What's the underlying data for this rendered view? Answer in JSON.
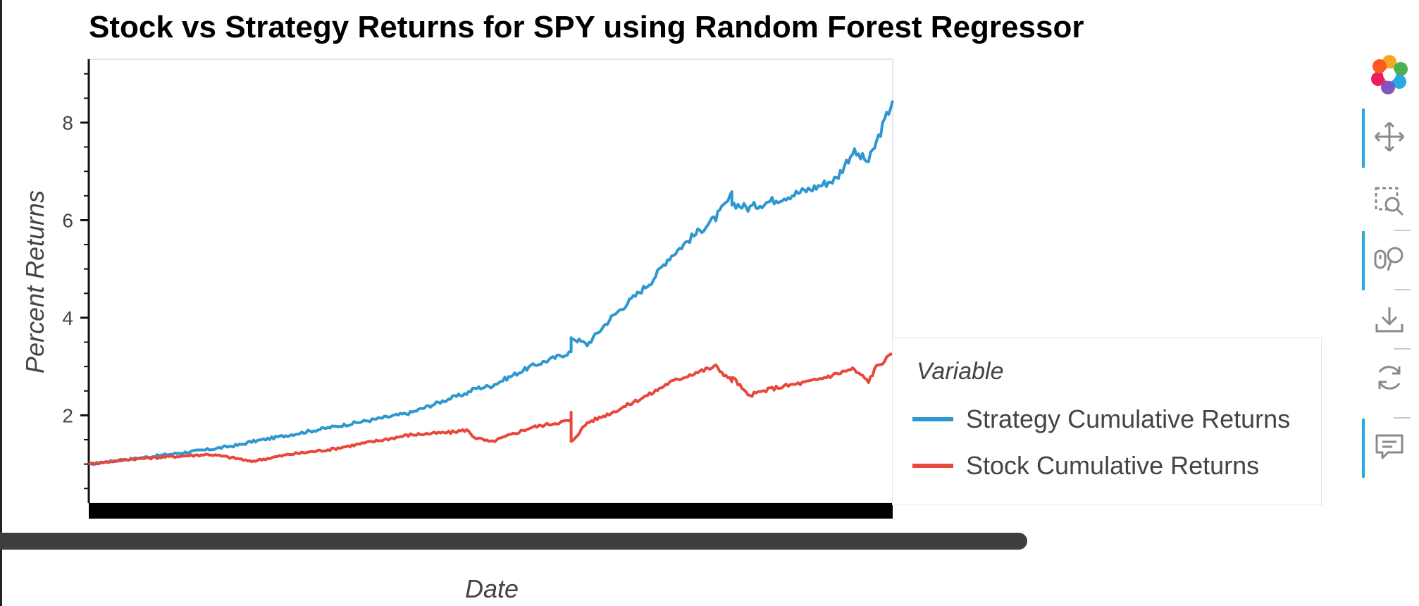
{
  "chart_data": {
    "type": "line",
    "title": "Stock vs Strategy Returns for SPY using Random Forest Regressor",
    "xlabel": "Date",
    "ylabel": "Percent Returns",
    "y_ticks": [
      2,
      4,
      6,
      8
    ],
    "ylim": [
      0.2,
      9.3
    ],
    "grid": false,
    "legend": {
      "title": "Variable",
      "placement": "right"
    },
    "x": [
      0,
      0.05,
      0.1,
      0.15,
      0.19,
      0.2,
      0.25,
      0.3,
      0.35,
      0.4,
      0.45,
      0.47,
      0.48,
      0.5,
      0.55,
      0.6,
      0.6,
      0.6,
      0.62,
      0.65,
      0.7,
      0.72,
      0.75,
      0.78,
      0.8,
      0.8,
      0.82,
      0.85,
      0.9,
      0.93,
      0.95,
      0.97,
      0.98,
      1.0
    ],
    "series": [
      {
        "name": "Strategy Cumulative Returns",
        "color": "#2f97d0",
        "values": [
          1.0,
          1.1,
          1.2,
          1.3,
          1.4,
          1.45,
          1.6,
          1.75,
          1.9,
          2.05,
          2.35,
          2.45,
          2.55,
          2.6,
          3.0,
          3.3,
          3.55,
          3.6,
          3.45,
          4.0,
          4.75,
          5.2,
          5.65,
          6.05,
          6.5,
          6.35,
          6.25,
          6.4,
          6.65,
          6.85,
          7.4,
          7.2,
          7.6,
          8.45
        ]
      },
      {
        "name": "Stock Cumulative Returns",
        "color": "#e8473b",
        "values": [
          1.0,
          1.1,
          1.15,
          1.2,
          1.1,
          1.05,
          1.2,
          1.3,
          1.45,
          1.6,
          1.65,
          1.7,
          1.55,
          1.45,
          1.75,
          1.9,
          2.05,
          1.45,
          1.85,
          2.05,
          2.45,
          2.65,
          2.85,
          3.0,
          2.7,
          2.8,
          2.4,
          2.55,
          2.7,
          2.85,
          2.95,
          2.7,
          3.0,
          3.25
        ]
      }
    ]
  },
  "toolbar": {
    "tools": [
      "pan-icon",
      "box-zoom-icon",
      "wheel-zoom-icon",
      "save-icon",
      "reset-icon",
      "hover-icon"
    ]
  }
}
